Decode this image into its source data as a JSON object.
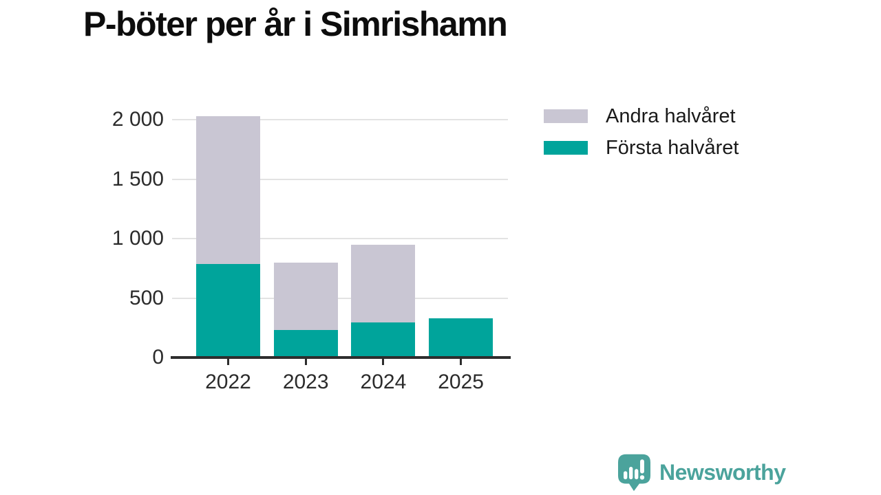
{
  "title": "P-böter per år i Simrishamn",
  "legend": {
    "items": [
      {
        "label": "Andra halvåret",
        "color": "#c9c6d3"
      },
      {
        "label": "Första halvåret",
        "color": "#00a49b"
      }
    ]
  },
  "footer": {
    "brand": "Newsworthy",
    "brand_color": "#4ba39c",
    "logo_icon": "newsworthy-speech-bubble-bar-chart-icon"
  },
  "colors": {
    "first_half": "#00a49b",
    "second_half": "#c9c6d3",
    "axis": "#2d2d2d",
    "gridline": "#e3e3e3",
    "tick_text": "#2b2b2b"
  },
  "chart_data": {
    "type": "bar",
    "stacked": true,
    "title": "P-böter per år i Simrishamn",
    "categories": [
      "2022",
      "2023",
      "2024",
      "2025"
    ],
    "series": [
      {
        "name": "Första halvåret",
        "color": "#00a49b",
        "values": [
          785,
          230,
          295,
          330
        ]
      },
      {
        "name": "Andra halvåret",
        "color": "#c9c6d3",
        "values": [
          1245,
          570,
          655,
          0
        ]
      }
    ],
    "totals": [
      2030,
      800,
      950,
      330
    ],
    "xlabel": "",
    "ylabel": "",
    "ylim": [
      0,
      2100
    ],
    "yticks": {
      "values": [
        0,
        500,
        1000,
        1500,
        2000
      ],
      "labels": [
        "0",
        "500",
        "1 000",
        "1 500",
        "2 000"
      ]
    },
    "grid": "horizontal",
    "legend_position": "top-right"
  }
}
